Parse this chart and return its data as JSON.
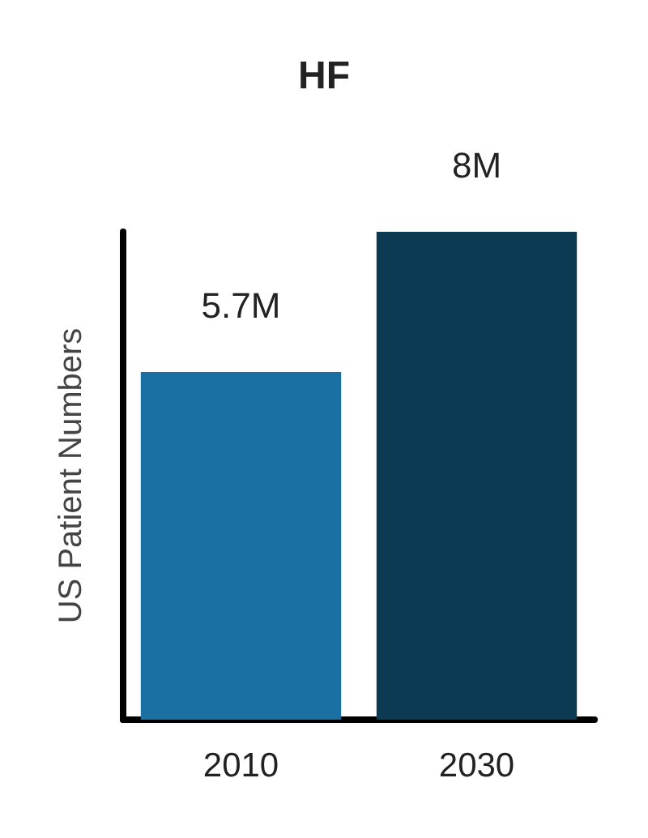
{
  "chart_data": {
    "type": "bar",
    "title": "HF",
    "ylabel": "US Patient Numbers",
    "categories": [
      "2010",
      "2030"
    ],
    "values": [
      5.7,
      8
    ],
    "colors": [
      "#1a6fa3",
      "#0b3a52"
    ],
    "value_labels": [
      "5.7M",
      "8M"
    ],
    "tick_labels": "x"
  }
}
